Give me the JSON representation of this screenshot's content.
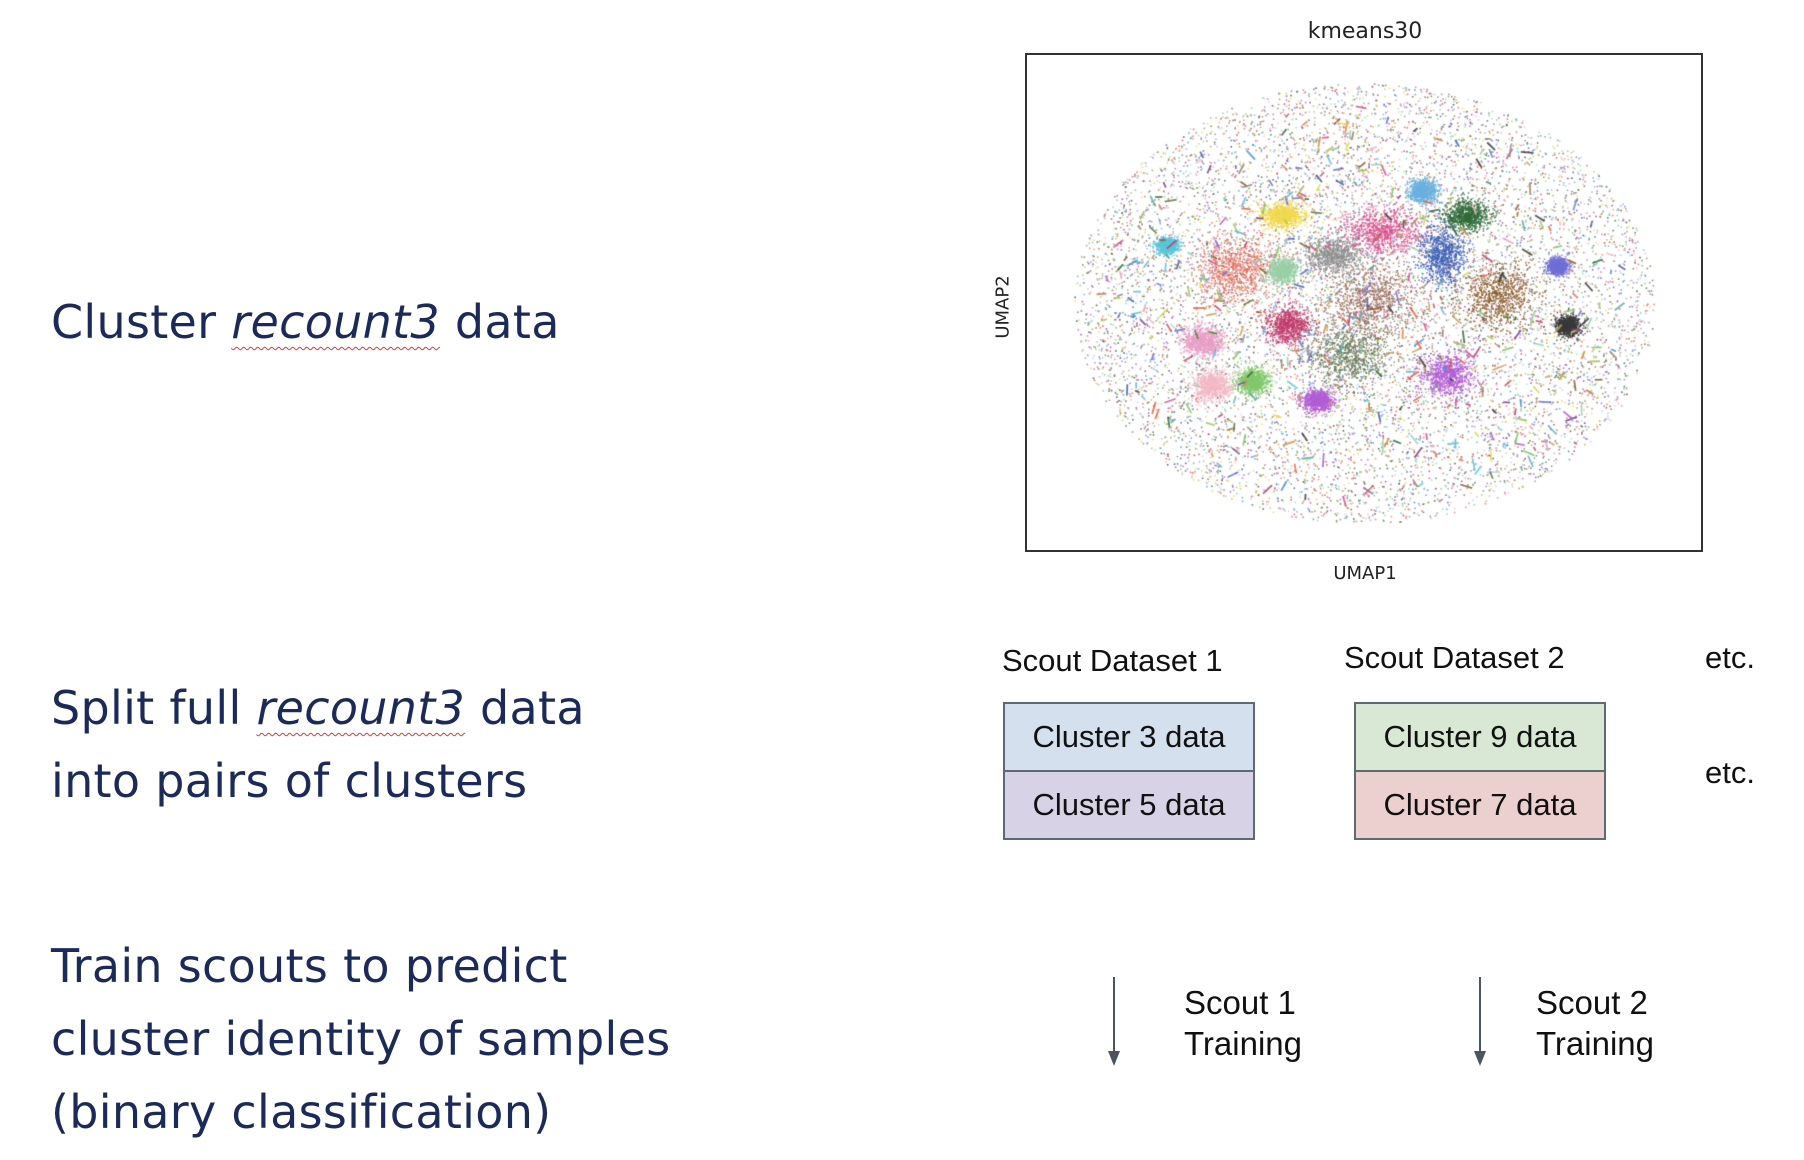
{
  "steps": [
    {
      "before": "Cluster ",
      "italic": "recount3",
      "after": " data"
    },
    {
      "before": "Split full ",
      "italic": "recount3",
      "after": " data",
      "line2": "into pairs of clusters"
    },
    {
      "line1": "Train scouts to predict",
      "line2": "cluster identity of samples",
      "line3": "(binary classification)"
    }
  ],
  "chart_data": {
    "type": "scatter",
    "title": "kmeans30",
    "xlabel": "UMAP1",
    "ylabel": "UMAP2",
    "grid": false,
    "axis_ticks": "none"
  },
  "scout_datasets": [
    {
      "title": "Scout Dataset 1",
      "clusters": [
        {
          "label": "Cluster 3 data",
          "color": "#d4e0ee"
        },
        {
          "label": "Cluster 5 data",
          "color": "#d8d2e6"
        }
      ],
      "training": {
        "line1": "Scout 1",
        "line2": "Training"
      }
    },
    {
      "title": "Scout Dataset 2",
      "clusters": [
        {
          "label": "Cluster 9 data",
          "color": "#d9e8d4"
        },
        {
          "label": "Cluster 7 data",
          "color": "#ecd0cf"
        }
      ],
      "training": {
        "line1": "Scout 2",
        "line2": "Training"
      }
    }
  ],
  "etc": [
    "etc.",
    "etc."
  ],
  "colors": {
    "text_dark_blue": "#1c2a5a",
    "box_border": "#5d6a76",
    "arrow": "#4a5560"
  },
  "icons": [
    "down-arrow-icon"
  ]
}
